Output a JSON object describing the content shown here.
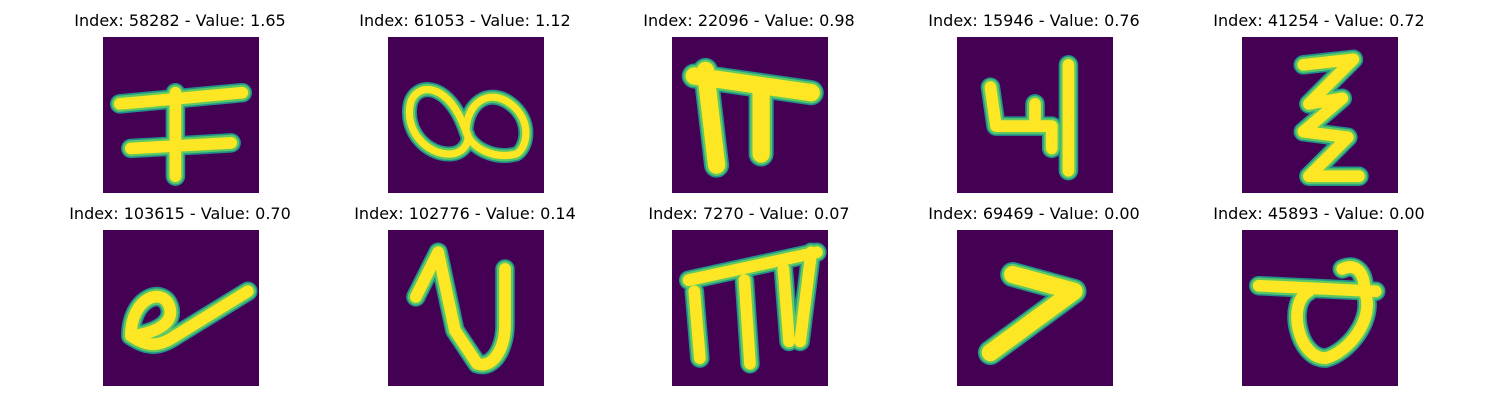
{
  "background_color": "#ffffff",
  "tile_color": "#440154",
  "stroke_edge_color": "#21918c",
  "stroke_mid_color": "#5ec962",
  "stroke_core_color": "#fde725",
  "panels": [
    {
      "title": "Index: 58282 - Value: 1.65",
      "index": 58282,
      "value": 1.65
    },
    {
      "title": "Index: 61053 - Value: 1.12",
      "index": 61053,
      "value": 1.12
    },
    {
      "title": "Index: 22096 - Value: 0.98",
      "index": 22096,
      "value": 0.98
    },
    {
      "title": "Index: 15946 - Value: 0.76",
      "index": 15946,
      "value": 0.76
    },
    {
      "title": "Index: 41254 - Value: 0.72",
      "index": 41254,
      "value": 0.72
    },
    {
      "title": "Index: 103615 - Value: 0.70",
      "index": 103615,
      "value": 0.7
    },
    {
      "title": "Index: 102776 - Value: 0.14",
      "index": 102776,
      "value": 0.14
    },
    {
      "title": "Index: 7270 - Value: 0.07",
      "index": 7270,
      "value": 0.07
    },
    {
      "title": "Index: 69469 - Value: 0.00",
      "index": 69469,
      "value": 0.0
    },
    {
      "title": "Index: 45893 - Value: 0.00",
      "index": 45893,
      "value": 0.0
    }
  ]
}
